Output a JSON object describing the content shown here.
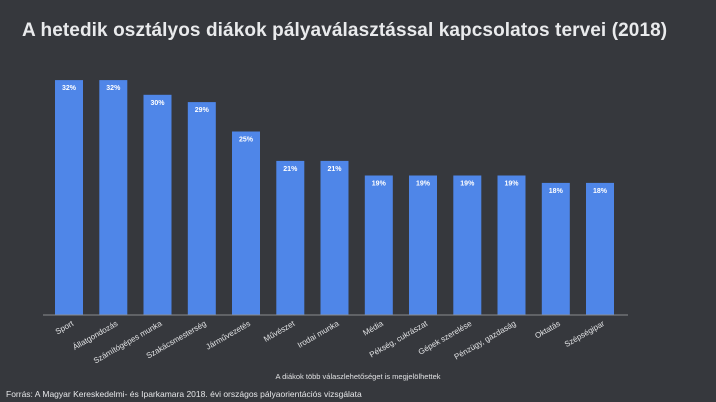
{
  "chart_data": {
    "type": "bar",
    "title": "A hetedik osztályos diákok pályaválasztással kapcsolatos tervei (2018)",
    "categories": [
      "Sport",
      "Állatgondozás",
      "Számítógépes munka",
      "Szakácsmesterség",
      "Járművezetés",
      "Művészet",
      "Irodai munka",
      "Média",
      "Pékség, cukrászat",
      "Gépek szerelése",
      "Pénzügy, gazdaság",
      "Oktatás",
      "Szépségipar"
    ],
    "values": [
      32,
      32,
      30,
      29,
      25,
      21,
      21,
      19,
      19,
      19,
      19,
      18,
      18
    ],
    "value_labels": [
      "32%",
      "32%",
      "30%",
      "29%",
      "25%",
      "21%",
      "21%",
      "19%",
      "19%",
      "19%",
      "19%",
      "18%",
      "18%"
    ],
    "ylim": [
      0,
      35
    ],
    "grid": false,
    "xlabel": "",
    "ylabel": "",
    "bar_color": "#4f86e8",
    "note": "A diákok több válaszlehetőséget is megjelölhettek",
    "source": "Forrás: A Magyar Kereskedelmi- és Iparkamara 2018. évi országos pályaorientációs vizsgálata"
  },
  "colors": {
    "background": "#36383d",
    "bar": "#4f86e8",
    "text": "#e9eaec"
  }
}
